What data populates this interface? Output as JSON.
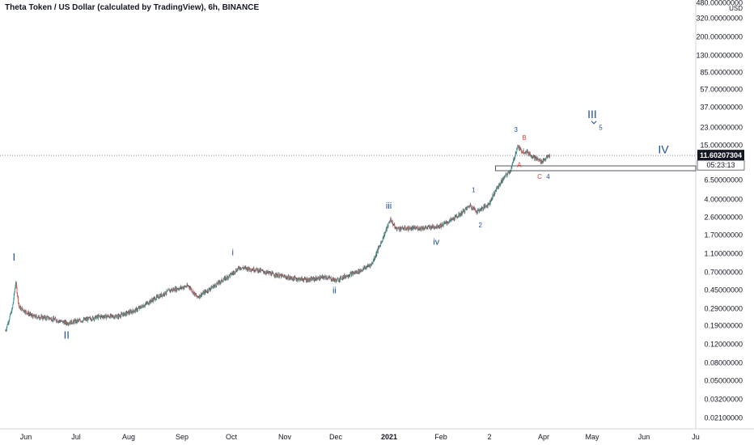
{
  "title": "Theta Token / US Dollar (calculated by TradingView), 6h, BINANCE",
  "chart_data": {
    "type": "candlestick",
    "scale": "log",
    "currency_label": "USD",
    "y_ticks": [
      "480.00000000",
      "320.00000000",
      "200.00000000",
      "130.00000000",
      "85.00000000",
      "57.00000000",
      "37.00000000",
      "23.00000000",
      "15.00000000",
      "11.60207304",
      "6.50000000",
      "4.00000000",
      "2.60000000",
      "1.70000000",
      "1.10000000",
      "0.70000000",
      "0.45000000",
      "0.29000000",
      "0.19000000",
      "0.12000000",
      "0.08000000",
      "0.05000000",
      "0.03200000",
      "0.02100000"
    ],
    "x_ticks": [
      "Jun",
      "Jul",
      "Aug",
      "Sep",
      "Oct",
      "Nov",
      "Dec",
      "2021",
      "Feb",
      "2",
      "Apr",
      "May",
      "Jun",
      "Ju"
    ],
    "current_price": "11.60207304",
    "countdown": "05:23:13",
    "price_path": [
      [
        "2020-05-20",
        0.17
      ],
      [
        "2020-05-24",
        0.29
      ],
      [
        "2020-05-26",
        0.55
      ],
      [
        "2020-05-28",
        0.3
      ],
      [
        "2020-06-05",
        0.24
      ],
      [
        "2020-06-15",
        0.23
      ],
      [
        "2020-06-25",
        0.205
      ],
      [
        "2020-07-05",
        0.22
      ],
      [
        "2020-07-15",
        0.24
      ],
      [
        "2020-07-25",
        0.24
      ],
      [
        "2020-08-05",
        0.28
      ],
      [
        "2020-08-15",
        0.36
      ],
      [
        "2020-08-25",
        0.45
      ],
      [
        "2020-09-05",
        0.5
      ],
      [
        "2020-09-10",
        0.38
      ],
      [
        "2020-09-20",
        0.5
      ],
      [
        "2020-09-30",
        0.66
      ],
      [
        "2020-10-05",
        0.78
      ],
      [
        "2020-10-15",
        0.74
      ],
      [
        "2020-10-25",
        0.66
      ],
      [
        "2020-11-05",
        0.6
      ],
      [
        "2020-11-15",
        0.58
      ],
      [
        "2020-11-25",
        0.62
      ],
      [
        "2020-12-01",
        0.57
      ],
      [
        "2020-12-05",
        0.62
      ],
      [
        "2020-12-15",
        0.72
      ],
      [
        "2020-12-22",
        0.85
      ],
      [
        "2020-12-28",
        1.5
      ],
      [
        "2021-01-02",
        2.5
      ],
      [
        "2021-01-05",
        2.0
      ],
      [
        "2021-01-15",
        2.0
      ],
      [
        "2021-01-25",
        2.05
      ],
      [
        "2021-02-01",
        2.15
      ],
      [
        "2021-02-06",
        2.4
      ],
      [
        "2021-02-12",
        2.8
      ],
      [
        "2021-02-18",
        3.5
      ],
      [
        "2021-02-22",
        3.0
      ],
      [
        "2021-03-01",
        3.6
      ],
      [
        "2021-03-05",
        5.0
      ],
      [
        "2021-03-10",
        6.8
      ],
      [
        "2021-03-14",
        8.2
      ],
      [
        "2021-03-18",
        14.5
      ],
      [
        "2021-03-20",
        13.0
      ],
      [
        "2021-03-24",
        12.5
      ],
      [
        "2021-03-28",
        11.0
      ],
      [
        "2021-04-01",
        10.0
      ],
      [
        "2021-04-06",
        11.6
      ]
    ],
    "wave_labels": [
      {
        "text": "I",
        "date": "2020-05-25",
        "price": 0.92,
        "color": "#1e4e9c",
        "size": 13
      },
      {
        "text": "II",
        "date": "2020-06-25",
        "price": 0.14,
        "color": "#1e4e9c",
        "size": 13
      },
      {
        "text": "i",
        "date": "2020-10-01",
        "price": 1.05,
        "color": "#1e4e9c",
        "size": 11
      },
      {
        "text": "ii",
        "date": "2020-11-30",
        "price": 0.42,
        "color": "#1e4e9c",
        "size": 11
      },
      {
        "text": "iii",
        "date": "2021-01-01",
        "price": 3.2,
        "color": "#1e4e9c",
        "size": 11
      },
      {
        "text": "iv",
        "date": "2021-01-29",
        "price": 1.35,
        "color": "#1e4e9c",
        "size": 11
      },
      {
        "text": "1",
        "date": "2021-02-20",
        "price": 4.8,
        "color": "#1e4e9c",
        "size": 8
      },
      {
        "text": "2",
        "date": "2021-02-24",
        "price": 2.05,
        "color": "#1e4e9c",
        "size": 8
      },
      {
        "text": "3",
        "date": "2021-03-17",
        "price": 20.5,
        "color": "#1e4e9c",
        "size": 8
      },
      {
        "text": "B",
        "date": "2021-03-22",
        "price": 16.8,
        "color": "#e53935",
        "size": 8
      },
      {
        "text": "A",
        "date": "2021-03-19",
        "price": 8.8,
        "color": "#e53935",
        "size": 8
      },
      {
        "text": "C",
        "date": "2021-03-31",
        "price": 6.6,
        "color": "#e53935",
        "size": 8
      },
      {
        "text": "4",
        "date": "2021-04-05",
        "price": 6.6,
        "color": "#1e4e9c",
        "size": 8
      },
      {
        "text": "III",
        "date": "2021-05-01",
        "price": 28.5,
        "color": "#1e4e9c",
        "size": 14
      },
      {
        "text": "5",
        "date": "2021-05-06",
        "price": 21.5,
        "color": "#1e4e9c",
        "size": 8
      },
      {
        "text": "IV",
        "date": "2021-06-12",
        "price": 12.2,
        "color": "#1e4e9c",
        "size": 14
      }
    ]
  }
}
